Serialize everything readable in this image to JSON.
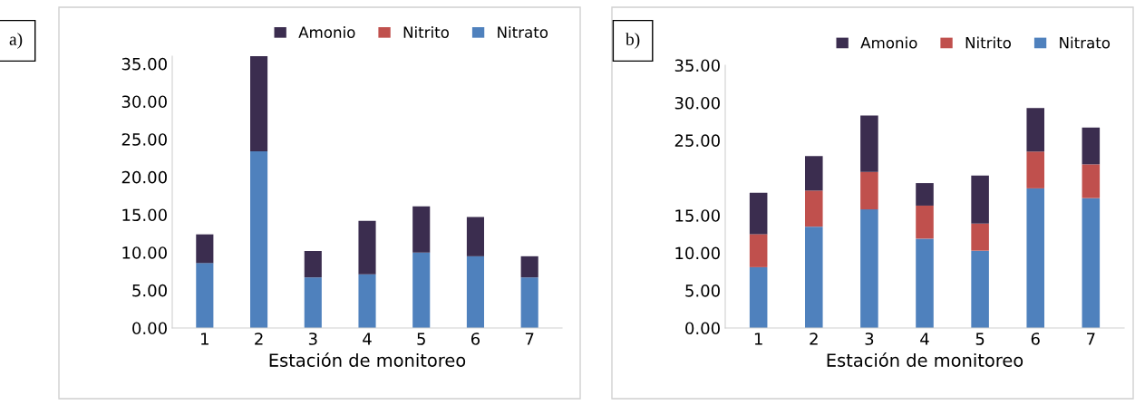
{
  "chart_data": [
    {
      "type": "bar",
      "stacked": true,
      "categories": [
        "1",
        "2",
        "3",
        "4",
        "5",
        "6",
        "7"
      ],
      "xlabel": "Estación de monitoreo",
      "ylim": [
        0,
        36
      ],
      "yticks": [
        {
          "value": 0,
          "label": "0.00"
        },
        {
          "value": 5,
          "label": "5.00"
        },
        {
          "value": 10,
          "label": "10.00"
        },
        {
          "value": 15,
          "label": "15.00"
        },
        {
          "value": 20,
          "label": "20.00"
        },
        {
          "value": 25,
          "label": "25.00"
        },
        {
          "value": 30,
          "label": "30.00"
        },
        {
          "value": 35,
          "label": "35.00"
        }
      ],
      "grid": false,
      "legend": "top right",
      "annotations": [
        "a)"
      ],
      "series": [
        {
          "name": "Nitrato",
          "color": "#4f81bd",
          "values": [
            8.6,
            23.4,
            6.7,
            7.1,
            10.0,
            9.5,
            6.7
          ]
        },
        {
          "name": "Nitrito",
          "color": "#c0504d",
          "values": [
            0,
            0,
            0,
            0,
            0,
            0,
            0
          ]
        },
        {
          "name": "Amonio",
          "color": "#3b2d4f",
          "values": [
            3.8,
            12.6,
            3.5,
            7.1,
            6.1,
            5.2,
            2.8
          ]
        }
      ]
    },
    {
      "type": "bar",
      "stacked": true,
      "categories": [
        "1",
        "2",
        "3",
        "4",
        "5",
        "6",
        "7"
      ],
      "xlabel": "Estación de monitoreo",
      "ylim": [
        0,
        35
      ],
      "yticks": [
        {
          "value": 0,
          "label": "0.00"
        },
        {
          "value": 5,
          "label": "5.00"
        },
        {
          "value": 10,
          "label": "10.00"
        },
        {
          "value": 15,
          "label": "15.00"
        },
        {
          "value": 25,
          "label": "25.00"
        },
        {
          "value": 30,
          "label": "30.00"
        },
        {
          "value": 35,
          "label": "35.00"
        }
      ],
      "grid": false,
      "legend": "top right",
      "annotations": [
        "b)"
      ],
      "series": [
        {
          "name": "Nitrato",
          "color": "#4f81bd",
          "values": [
            8.1,
            13.5,
            15.8,
            11.9,
            10.3,
            18.6,
            17.3
          ]
        },
        {
          "name": "Nitrito",
          "color": "#c0504d",
          "values": [
            4.4,
            4.8,
            5.0,
            4.4,
            3.6,
            4.9,
            4.5
          ]
        },
        {
          "name": "Amonio",
          "color": "#3b2d4f",
          "values": [
            5.5,
            4.6,
            7.5,
            3.0,
            6.4,
            5.8,
            4.9
          ]
        }
      ]
    }
  ]
}
